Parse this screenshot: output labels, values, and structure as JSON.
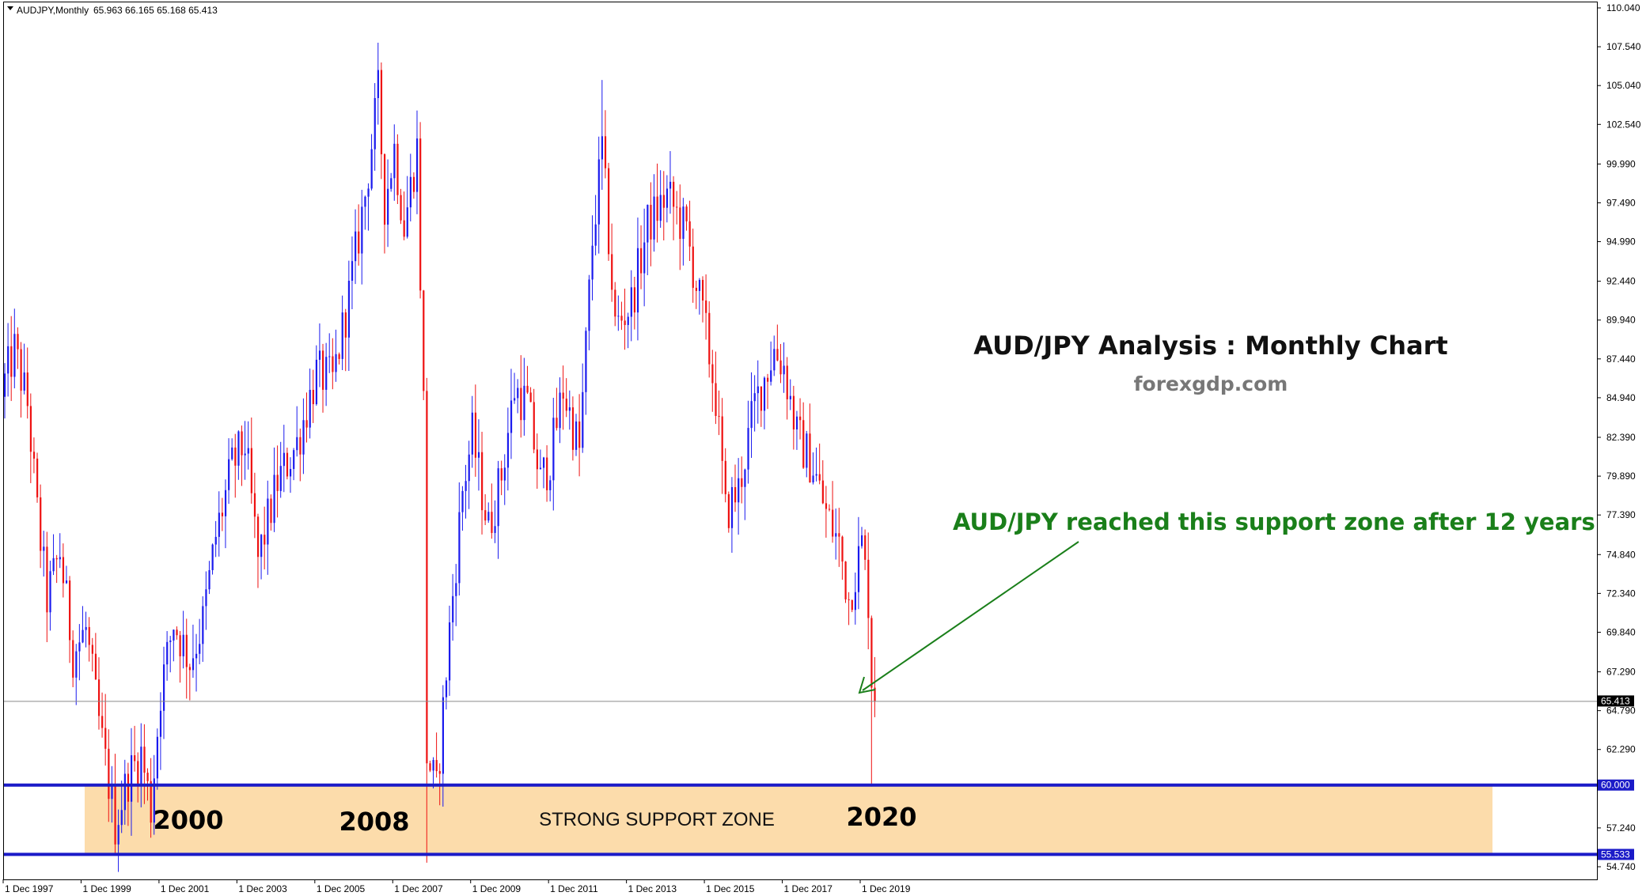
{
  "header": {
    "symbol": "AUDJPY,Monthly",
    "ohlc": "65.963 66.165 65.168 65.413"
  },
  "annotations": {
    "title": "AUD/JPY Analysis : Monthly Chart",
    "website": "forexgdp.com",
    "callout": "AUD/JPY reached this support zone after 12 years",
    "zone_label": "STRONG SUPPORT ZONE",
    "years": [
      "2000",
      "2008",
      "2020"
    ]
  },
  "colors": {
    "bull": "#1a1aee",
    "bear": "#ee1111",
    "zone_fill": "#fcdcab",
    "support_line": "#1b1bc8",
    "arrow": "#1a7f1a",
    "current_price_tag": "#000000"
  },
  "chart_data": {
    "type": "candlestick",
    "symbol": "AUDJPY",
    "timeframe": "Monthly",
    "y_ticks": [
      "110.040",
      "107.540",
      "105.040",
      "102.540",
      "99.990",
      "97.490",
      "94.990",
      "92.440",
      "89.940",
      "87.440",
      "84.940",
      "82.390",
      "79.890",
      "77.390",
      "74.840",
      "72.340",
      "69.840",
      "67.290",
      "64.790",
      "62.290",
      "57.240",
      "54.740"
    ],
    "x_ticks": [
      "1 Dec 1997",
      "1 Dec 1999",
      "1 Dec 2001",
      "1 Dec 2003",
      "1 Dec 2005",
      "1 Dec 2007",
      "1 Dec 2009",
      "1 Dec 2011",
      "1 Dec 2013",
      "1 Dec 2015",
      "1 Dec 2017",
      "1 Dec 2019"
    ],
    "ylim": [
      54.2,
      110.6
    ],
    "current_price": {
      "label": "65.413",
      "value": 65.413
    },
    "support_zone": {
      "upper": {
        "label": "60.000",
        "value": 60.0
      },
      "lower": {
        "label": "55.533",
        "value": 55.533
      }
    },
    "key_points": [
      {
        "date": "2000-10",
        "low": 55.6
      },
      {
        "date": "2007-07",
        "high": 107.8
      },
      {
        "date": "2008-10",
        "low": 55.0
      },
      {
        "date": "2013-04",
        "high": 105.4
      },
      {
        "date": "2020-03",
        "low": 59.9
      },
      {
        "date": "2020-04",
        "close": 65.413
      }
    ],
    "path": [
      [
        "1997-12",
        86.0
      ],
      [
        "1998-03",
        88.0
      ],
      [
        "1998-07",
        84.5
      ],
      [
        "1998-10",
        77.5
      ],
      [
        "1999-01",
        72.0
      ],
      [
        "1999-05",
        75.0
      ],
      [
        "1999-09",
        68.5
      ],
      [
        "2000-01",
        70.0
      ],
      [
        "2000-05",
        64.0
      ],
      [
        "2000-10",
        57.5
      ],
      [
        "2001-02",
        60.5
      ],
      [
        "2001-06",
        62.0
      ],
      [
        "2001-09",
        58.5
      ],
      [
        "2001-12",
        66.0
      ],
      [
        "2002-04",
        70.5
      ],
      [
        "2002-09",
        68.0
      ],
      [
        "2003-01",
        70.5
      ],
      [
        "2003-05",
        76.0
      ],
      [
        "2003-10",
        80.5
      ],
      [
        "2004-02",
        82.0
      ],
      [
        "2004-06",
        74.5
      ],
      [
        "2004-12",
        79.5
      ],
      [
        "2005-06",
        82.0
      ],
      [
        "2005-12",
        86.5
      ],
      [
        "2006-05",
        86.0
      ],
      [
        "2006-10",
        91.5
      ],
      [
        "2007-03",
        98.0
      ],
      [
        "2007-07",
        104.5
      ],
      [
        "2007-09",
        97.5
      ],
      [
        "2007-12",
        101.0
      ],
      [
        "2008-03",
        96.0
      ],
      [
        "2008-07",
        101.0
      ],
      [
        "2008-09",
        84.5
      ],
      [
        "2008-10",
        62.0
      ],
      [
        "2009-01",
        59.5
      ],
      [
        "2009-05",
        70.0
      ],
      [
        "2009-09",
        79.0
      ],
      [
        "2009-12",
        82.5
      ],
      [
        "2010-05",
        76.5
      ],
      [
        "2010-09",
        80.0
      ],
      [
        "2011-01",
        85.5
      ],
      [
        "2011-05",
        84.5
      ],
      [
        "2011-09",
        79.5
      ],
      [
        "2011-12",
        81.0
      ],
      [
        "2012-04",
        85.5
      ],
      [
        "2012-09",
        81.5
      ],
      [
        "2013-01",
        95.0
      ],
      [
        "2013-04",
        101.0
      ],
      [
        "2013-08",
        89.5
      ],
      [
        "2014-01",
        91.0
      ],
      [
        "2014-06",
        96.0
      ],
      [
        "2014-12",
        98.0
      ],
      [
        "2015-06",
        95.5
      ],
      [
        "2015-12",
        89.0
      ],
      [
        "2016-03",
        85.0
      ],
      [
        "2016-06",
        77.5
      ],
      [
        "2016-10",
        79.0
      ],
      [
        "2017-03",
        84.5
      ],
      [
        "2017-09",
        88.0
      ],
      [
        "2017-12",
        87.0
      ],
      [
        "2018-04",
        82.5
      ],
      [
        "2018-09",
        80.5
      ],
      [
        "2019-01",
        77.5
      ],
      [
        "2019-05",
        75.5
      ],
      [
        "2019-08",
        72.0
      ],
      [
        "2019-12",
        75.5
      ],
      [
        "2020-02",
        72.0
      ],
      [
        "2020-03",
        67.0
      ],
      [
        "2020-04",
        65.4
      ]
    ]
  }
}
